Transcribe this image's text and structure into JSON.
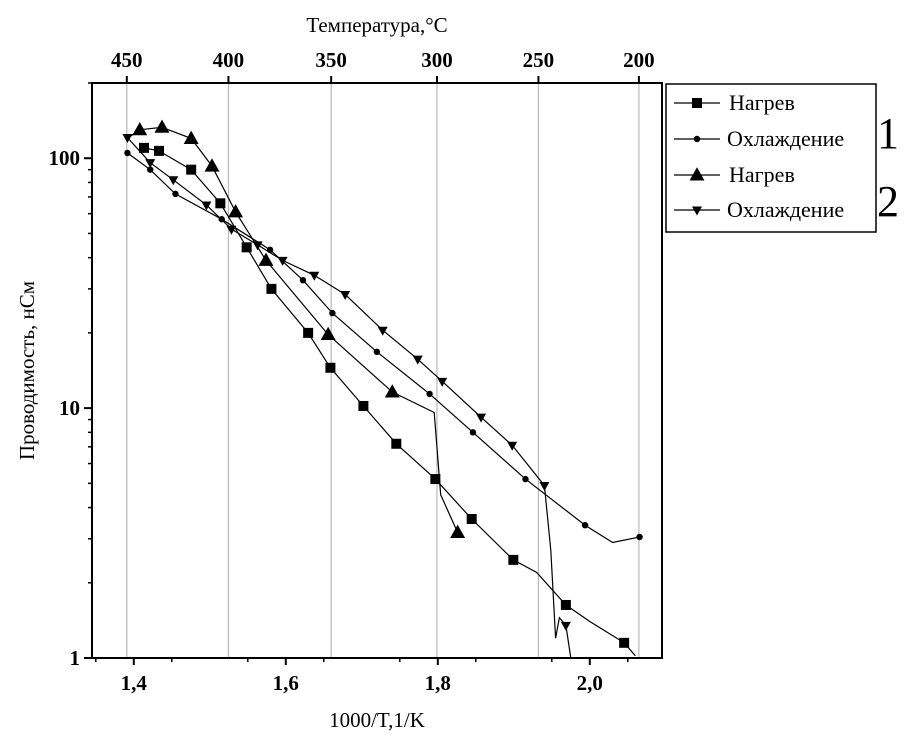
{
  "chart_data": {
    "type": "line",
    "xlabel": "1000/T,1/K",
    "ylabel": "Проводимость, нСм",
    "top_axis_title": "Температура,°С",
    "yscale": "log",
    "xlim": [
      1.345,
      2.095
    ],
    "ylim": [
      1,
      200
    ],
    "grid": "vertical lines at top-axis temperature ticks",
    "legend_placement": "right, outside plot",
    "x_ticks": [
      {
        "value": 1.4,
        "label": "1,4"
      },
      {
        "value": 1.6,
        "label": "1,6"
      },
      {
        "value": 1.8,
        "label": "1,8"
      },
      {
        "value": 2.0,
        "label": "2,0"
      }
    ],
    "y_ticks": [
      {
        "value": 1,
        "label": "1"
      },
      {
        "value": 10,
        "label": "10"
      },
      {
        "value": 100,
        "label": "100"
      }
    ],
    "top_ticks": [
      {
        "label": "450",
        "x": 1.3908
      },
      {
        "label": "400",
        "x": 1.5245
      },
      {
        "label": "350",
        "x": 1.6597
      },
      {
        "label": "300",
        "x": 1.7989
      },
      {
        "label": "250",
        "x": 1.9324
      },
      {
        "label": "200",
        "x": 2.0646
      }
    ],
    "legend_groups": [
      {
        "number": "1"
      },
      {
        "number": "2"
      }
    ],
    "series": [
      {
        "name": "Нагрев",
        "group": "1",
        "marker": "square",
        "markers": [
          [
            1.4134,
            110
          ],
          [
            1.4332,
            107
          ],
          [
            1.4755,
            90
          ],
          [
            1.5139,
            66
          ],
          [
            1.5485,
            44
          ],
          [
            1.5811,
            30
          ],
          [
            1.6294,
            20
          ],
          [
            1.6587,
            14.5
          ],
          [
            1.7021,
            10.2
          ],
          [
            1.7454,
            7.2
          ],
          [
            1.7968,
            5.2
          ],
          [
            1.8446,
            3.6
          ],
          [
            1.8994,
            2.47
          ],
          [
            1.9685,
            1.63
          ],
          [
            2.0452,
            1.15
          ]
        ],
        "line": [
          [
            1.4134,
            110
          ],
          [
            1.4332,
            107
          ],
          [
            1.4755,
            90
          ],
          [
            1.5139,
            66
          ],
          [
            1.5485,
            44
          ],
          [
            1.5811,
            30
          ],
          [
            1.6294,
            20
          ],
          [
            1.6587,
            14.5
          ],
          [
            1.7021,
            10.2
          ],
          [
            1.7454,
            7.2
          ],
          [
            1.7968,
            5.2
          ],
          [
            1.8446,
            3.6
          ],
          [
            1.8994,
            2.47
          ],
          [
            1.93,
            2.2
          ],
          [
            1.9685,
            1.63
          ],
          [
            2.0,
            1.4
          ],
          [
            2.0452,
            1.15
          ],
          [
            2.06,
            1.02
          ]
        ]
      },
      {
        "name": "Охлаждение",
        "group": "1",
        "marker": "circle",
        "markers": [
          [
            1.3916,
            105
          ],
          [
            1.4216,
            90
          ],
          [
            1.4548,
            72
          ],
          [
            1.5157,
            57
          ],
          [
            1.5793,
            43
          ],
          [
            1.6226,
            32.5
          ],
          [
            1.6613,
            24
          ],
          [
            1.7198,
            16.8
          ],
          [
            1.7892,
            11.4
          ],
          [
            1.8462,
            8
          ],
          [
            1.9154,
            5.2
          ],
          [
            1.9938,
            3.4
          ],
          [
            2.0655,
            3.05
          ]
        ],
        "line": [
          [
            1.3916,
            105
          ],
          [
            1.4216,
            90
          ],
          [
            1.4548,
            72
          ],
          [
            1.5157,
            57
          ],
          [
            1.5793,
            43
          ],
          [
            1.6226,
            32.5
          ],
          [
            1.6613,
            24
          ],
          [
            1.7198,
            16.8
          ],
          [
            1.7892,
            11.4
          ],
          [
            1.8462,
            8
          ],
          [
            1.9154,
            5.2
          ],
          [
            1.9938,
            3.4
          ],
          [
            2.03,
            2.9
          ],
          [
            2.0655,
            3.05
          ]
        ]
      },
      {
        "name": "Нагрев",
        "group": "2",
        "marker": "triangle-up",
        "markers": [
          [
            1.4079,
            130
          ],
          [
            1.4371,
            133
          ],
          [
            1.4755,
            120
          ],
          [
            1.5029,
            93
          ],
          [
            1.5339,
            61
          ],
          [
            1.5739,
            39
          ],
          [
            1.6557,
            19.7
          ],
          [
            1.7401,
            11.6
          ],
          [
            1.8261,
            3.18
          ]
        ],
        "line": [
          [
            1.3916,
            120
          ],
          [
            1.4079,
            130
          ],
          [
            1.4371,
            133
          ],
          [
            1.4755,
            120
          ],
          [
            1.5029,
            93
          ],
          [
            1.5339,
            61
          ],
          [
            1.5739,
            39
          ],
          [
            1.6557,
            19.7
          ],
          [
            1.7401,
            11.6
          ],
          [
            1.7952,
            9.6
          ],
          [
            1.8038,
            4.5
          ],
          [
            1.8261,
            3.18
          ]
        ]
      },
      {
        "name": "Охлаждение",
        "group": "2",
        "marker": "triangle-down",
        "markers": [
          [
            1.3916,
            121
          ],
          [
            1.4216,
            96
          ],
          [
            1.4519,
            82
          ],
          [
            1.4955,
            65
          ],
          [
            1.5285,
            52
          ],
          [
            1.5629,
            45
          ],
          [
            1.5958,
            39
          ],
          [
            1.6375,
            34
          ],
          [
            1.6781,
            28.5
          ],
          [
            1.7275,
            20.5
          ],
          [
            1.7736,
            15.7
          ],
          [
            1.8058,
            12.8
          ],
          [
            1.8569,
            9.2
          ],
          [
            1.8979,
            7.1
          ],
          [
            1.9403,
            4.9
          ],
          [
            1.9685,
            1.35
          ]
        ],
        "line": [
          [
            1.3916,
            121
          ],
          [
            1.4216,
            96
          ],
          [
            1.4519,
            82
          ],
          [
            1.4955,
            65
          ],
          [
            1.5285,
            52
          ],
          [
            1.5629,
            45
          ],
          [
            1.5958,
            39
          ],
          [
            1.6375,
            34
          ],
          [
            1.6781,
            28.5
          ],
          [
            1.7275,
            20.5
          ],
          [
            1.7736,
            15.7
          ],
          [
            1.8058,
            12.8
          ],
          [
            1.8569,
            9.2
          ],
          [
            1.8979,
            7.1
          ],
          [
            1.9403,
            4.9
          ],
          [
            1.9487,
            2.7
          ],
          [
            1.955,
            1.2
          ],
          [
            1.96,
            1.45
          ],
          [
            1.9685,
            1.35
          ],
          [
            1.975,
            1.0
          ]
        ]
      }
    ]
  }
}
